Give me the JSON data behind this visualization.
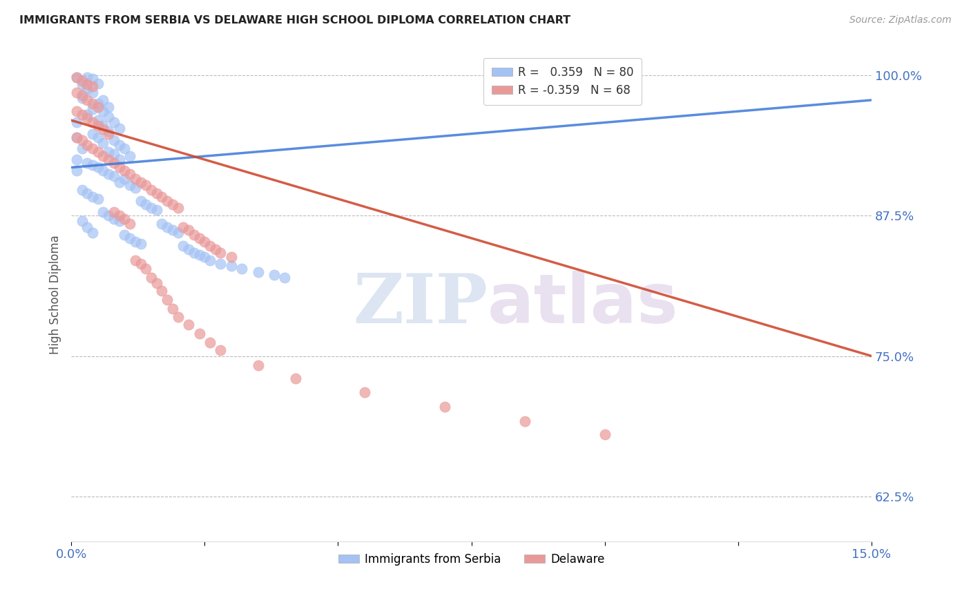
{
  "title": "IMMIGRANTS FROM SERBIA VS DELAWARE HIGH SCHOOL DIPLOMA CORRELATION CHART",
  "source": "Source: ZipAtlas.com",
  "ylabel": "High School Diploma",
  "yticks": [
    "62.5%",
    "75.0%",
    "87.5%",
    "100.0%"
  ],
  "ytick_vals": [
    0.625,
    0.75,
    0.875,
    1.0
  ],
  "xlim": [
    0.0,
    0.15
  ],
  "ylim": [
    0.585,
    1.025
  ],
  "legend_r_blue": "R =   0.359",
  "legend_n_blue": "N = 80",
  "legend_r_pink": "R = -0.359",
  "legend_n_pink": "N = 68",
  "blue_color": "#a4c2f4",
  "pink_color": "#ea9999",
  "trendline_blue": "#3c78d8",
  "trendline_pink": "#cc4125",
  "watermark_zip": "ZIP",
  "watermark_atlas": "atlas",
  "background_color": "#ffffff",
  "blue_trendline_x": [
    0.0,
    0.15
  ],
  "blue_trendline_y": [
    0.918,
    0.978
  ],
  "pink_trendline_x": [
    0.0,
    0.15
  ],
  "pink_trendline_y": [
    0.96,
    0.75
  ],
  "blue_scatter": [
    [
      0.001,
      0.998
    ],
    [
      0.002,
      0.992
    ],
    [
      0.003,
      0.998
    ],
    [
      0.004,
      0.997
    ],
    [
      0.005,
      0.993
    ],
    [
      0.003,
      0.988
    ],
    [
      0.004,
      0.985
    ],
    [
      0.002,
      0.98
    ],
    [
      0.006,
      0.978
    ],
    [
      0.005,
      0.975
    ],
    [
      0.007,
      0.972
    ],
    [
      0.004,
      0.97
    ],
    [
      0.006,
      0.968
    ],
    [
      0.003,
      0.965
    ],
    [
      0.007,
      0.963
    ],
    [
      0.005,
      0.96
    ],
    [
      0.008,
      0.958
    ],
    [
      0.006,
      0.955
    ],
    [
      0.009,
      0.953
    ],
    [
      0.007,
      0.95
    ],
    [
      0.004,
      0.948
    ],
    [
      0.005,
      0.945
    ],
    [
      0.008,
      0.942
    ],
    [
      0.006,
      0.94
    ],
    [
      0.009,
      0.938
    ],
    [
      0.01,
      0.935
    ],
    [
      0.007,
      0.932
    ],
    [
      0.008,
      0.93
    ],
    [
      0.011,
      0.928
    ],
    [
      0.009,
      0.925
    ],
    [
      0.003,
      0.922
    ],
    [
      0.004,
      0.92
    ],
    [
      0.005,
      0.918
    ],
    [
      0.006,
      0.915
    ],
    [
      0.007,
      0.912
    ],
    [
      0.008,
      0.91
    ],
    [
      0.01,
      0.908
    ],
    [
      0.009,
      0.905
    ],
    [
      0.011,
      0.902
    ],
    [
      0.012,
      0.9
    ],
    [
      0.002,
      0.898
    ],
    [
      0.003,
      0.895
    ],
    [
      0.004,
      0.892
    ],
    [
      0.005,
      0.89
    ],
    [
      0.013,
      0.888
    ],
    [
      0.014,
      0.885
    ],
    [
      0.015,
      0.882
    ],
    [
      0.016,
      0.88
    ],
    [
      0.006,
      0.878
    ],
    [
      0.007,
      0.875
    ],
    [
      0.008,
      0.872
    ],
    [
      0.009,
      0.87
    ],
    [
      0.017,
      0.868
    ],
    [
      0.018,
      0.865
    ],
    [
      0.019,
      0.862
    ],
    [
      0.02,
      0.86
    ],
    [
      0.01,
      0.858
    ],
    [
      0.011,
      0.855
    ],
    [
      0.012,
      0.852
    ],
    [
      0.013,
      0.85
    ],
    [
      0.021,
      0.848
    ],
    [
      0.022,
      0.845
    ],
    [
      0.023,
      0.842
    ],
    [
      0.024,
      0.84
    ],
    [
      0.025,
      0.838
    ],
    [
      0.026,
      0.835
    ],
    [
      0.028,
      0.832
    ],
    [
      0.03,
      0.83
    ],
    [
      0.032,
      0.828
    ],
    [
      0.035,
      0.825
    ],
    [
      0.038,
      0.822
    ],
    [
      0.04,
      0.82
    ],
    [
      0.002,
      0.87
    ],
    [
      0.003,
      0.865
    ],
    [
      0.004,
      0.86
    ],
    [
      0.001,
      0.958
    ],
    [
      0.001,
      0.945
    ],
    [
      0.002,
      0.935
    ],
    [
      0.001,
      0.925
    ],
    [
      0.001,
      0.915
    ]
  ],
  "pink_scatter": [
    [
      0.001,
      0.998
    ],
    [
      0.002,
      0.995
    ],
    [
      0.003,
      0.992
    ],
    [
      0.004,
      0.99
    ],
    [
      0.001,
      0.985
    ],
    [
      0.002,
      0.982
    ],
    [
      0.003,
      0.978
    ],
    [
      0.004,
      0.975
    ],
    [
      0.005,
      0.972
    ],
    [
      0.001,
      0.968
    ],
    [
      0.002,
      0.965
    ],
    [
      0.003,
      0.962
    ],
    [
      0.004,
      0.958
    ],
    [
      0.005,
      0.955
    ],
    [
      0.006,
      0.952
    ],
    [
      0.007,
      0.948
    ],
    [
      0.001,
      0.945
    ],
    [
      0.002,
      0.942
    ],
    [
      0.003,
      0.938
    ],
    [
      0.004,
      0.935
    ],
    [
      0.005,
      0.932
    ],
    [
      0.006,
      0.928
    ],
    [
      0.007,
      0.925
    ],
    [
      0.008,
      0.922
    ],
    [
      0.009,
      0.918
    ],
    [
      0.01,
      0.915
    ],
    [
      0.011,
      0.912
    ],
    [
      0.012,
      0.908
    ],
    [
      0.013,
      0.905
    ],
    [
      0.014,
      0.902
    ],
    [
      0.015,
      0.898
    ],
    [
      0.016,
      0.895
    ],
    [
      0.017,
      0.892
    ],
    [
      0.018,
      0.888
    ],
    [
      0.019,
      0.885
    ],
    [
      0.02,
      0.882
    ],
    [
      0.008,
      0.878
    ],
    [
      0.009,
      0.875
    ],
    [
      0.01,
      0.872
    ],
    [
      0.011,
      0.868
    ],
    [
      0.021,
      0.865
    ],
    [
      0.022,
      0.862
    ],
    [
      0.023,
      0.858
    ],
    [
      0.024,
      0.855
    ],
    [
      0.025,
      0.852
    ],
    [
      0.026,
      0.848
    ],
    [
      0.027,
      0.845
    ],
    [
      0.028,
      0.842
    ],
    [
      0.03,
      0.838
    ],
    [
      0.012,
      0.835
    ],
    [
      0.013,
      0.832
    ],
    [
      0.014,
      0.828
    ],
    [
      0.015,
      0.82
    ],
    [
      0.016,
      0.815
    ],
    [
      0.017,
      0.808
    ],
    [
      0.018,
      0.8
    ],
    [
      0.019,
      0.792
    ],
    [
      0.02,
      0.785
    ],
    [
      0.022,
      0.778
    ],
    [
      0.024,
      0.77
    ],
    [
      0.026,
      0.762
    ],
    [
      0.028,
      0.755
    ],
    [
      0.035,
      0.742
    ],
    [
      0.042,
      0.73
    ],
    [
      0.055,
      0.718
    ],
    [
      0.07,
      0.705
    ],
    [
      0.085,
      0.692
    ],
    [
      0.1,
      0.68
    ]
  ]
}
